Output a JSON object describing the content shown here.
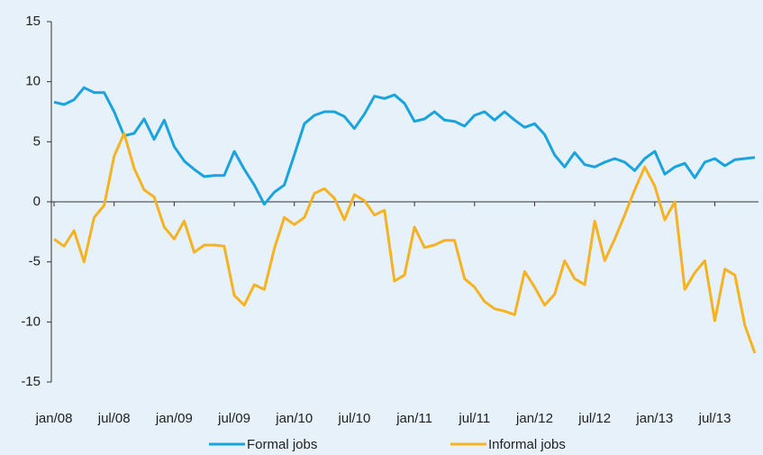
{
  "chart_data": {
    "type": "line",
    "categories": [
      "jan/08",
      null,
      null,
      null,
      null,
      null,
      "jul/08",
      null,
      null,
      null,
      null,
      null,
      "jan/09",
      null,
      null,
      null,
      null,
      null,
      "jul/09",
      null,
      null,
      null,
      null,
      null,
      "jan/10",
      null,
      null,
      null,
      null,
      null,
      "jul/10",
      null,
      null,
      null,
      null,
      null,
      "jan/11",
      null,
      null,
      null,
      null,
      null,
      "jul/11",
      null,
      null,
      null,
      null,
      null,
      "jan/12",
      null,
      null,
      null,
      null,
      null,
      "jul/12",
      null,
      null,
      null,
      null,
      null,
      "jan/13",
      null,
      null,
      null,
      null,
      null,
      "jul/13",
      null,
      null,
      null,
      null
    ],
    "series": [
      {
        "name": "Formal jobs",
        "color": "#1aa3dd",
        "values": [
          8.3,
          8.1,
          8.5,
          9.5,
          9.1,
          9.1,
          7.5,
          5.5,
          5.7,
          6.9,
          5.2,
          6.8,
          4.6,
          3.4,
          2.7,
          2.1,
          2.2,
          2.2,
          4.2,
          2.7,
          1.4,
          -0.2,
          0.8,
          1.4,
          3.9,
          6.5,
          7.2,
          7.5,
          7.5,
          7.1,
          6.1,
          7.3,
          8.8,
          8.6,
          8.9,
          8.2,
          6.7,
          6.9,
          7.5,
          6.8,
          6.7,
          6.3,
          7.2,
          7.5,
          6.8,
          7.5,
          6.8,
          6.2,
          6.5,
          5.6,
          3.9,
          2.9,
          4.1,
          3.1,
          2.9,
          3.3,
          3.6,
          3.3,
          2.6,
          3.6,
          4.2,
          2.3,
          2.9,
          3.2,
          2.0,
          3.3,
          3.6,
          3.0,
          3.5,
          3.6,
          3.7
        ]
      },
      {
        "name": "Informal jobs",
        "color": "#f5b324",
        "values": [
          -3.1,
          -3.7,
          -2.4,
          -5.0,
          -1.3,
          -0.3,
          3.8,
          5.7,
          2.8,
          1.0,
          0.4,
          -2.1,
          -3.1,
          -1.6,
          -4.2,
          -3.6,
          -3.6,
          -3.7,
          -7.8,
          -8.6,
          -6.9,
          -7.3,
          -3.9,
          -1.3,
          -1.9,
          -1.3,
          0.7,
          1.1,
          0.3,
          -1.5,
          0.6,
          0.1,
          -1.1,
          -0.7,
          -6.6,
          -6.1,
          -2.1,
          -3.8,
          -3.6,
          -3.2,
          -3.2,
          -6.4,
          -7.1,
          -8.3,
          -8.9,
          -9.1,
          -9.4,
          -5.8,
          -7.1,
          -8.6,
          -7.7,
          -4.9,
          -6.4,
          -6.9,
          -1.6,
          -4.9,
          -3.1,
          -1.1,
          1.0,
          2.9,
          1.3,
          -1.5,
          0.0,
          -7.3,
          -5.9,
          -4.9,
          -9.9,
          -5.6,
          -6.1,
          -10.3,
          -12.6
        ]
      }
    ],
    "ylim": [
      -15,
      15
    ],
    "yticks": [
      -15,
      -10,
      -5,
      0,
      5,
      10,
      15
    ]
  }
}
